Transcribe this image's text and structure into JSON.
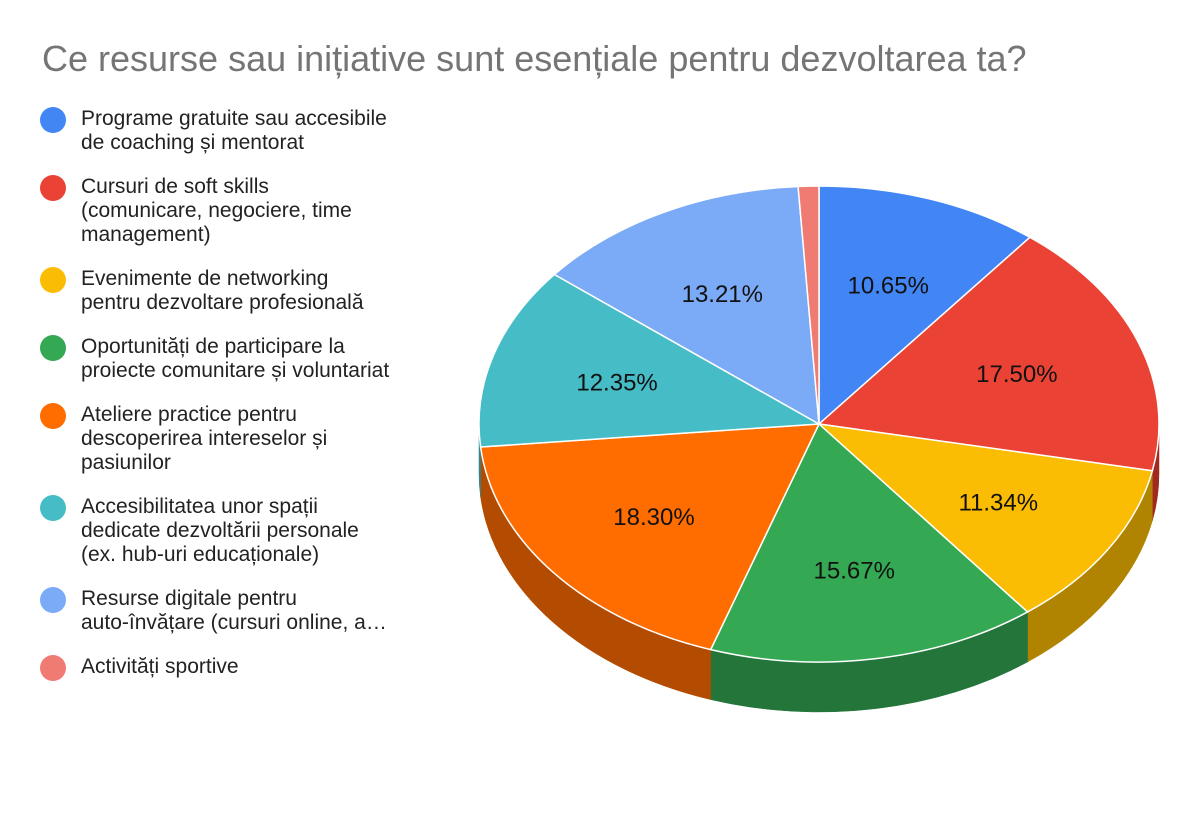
{
  "chart_data": {
    "type": "pie",
    "title": "Ce resurse sau inițiative sunt esențiale pentru dezvoltarea ta?",
    "legend_position": "left",
    "three_d": true,
    "slices": [
      {
        "name": "Programe gratuite sau accesibile\nde coaching și mentorat",
        "value": 10.65,
        "label": "10.65%",
        "color": "#4285f4",
        "side_color": "#2a56a8"
      },
      {
        "name": "Cursuri de soft skills\n(comunicare, negociere, time\nmanagement)",
        "value": 17.5,
        "label": "17.50%",
        "color": "#ea4335",
        "side_color": "#a12a20"
      },
      {
        "name": "Evenimente de networking\npentru dezvoltare profesională",
        "value": 11.34,
        "label": "11.34%",
        "color": "#fbbc04",
        "side_color": "#b08400"
      },
      {
        "name": "Oportunități de participare la\nproiecte comunitare și voluntariat",
        "value": 15.67,
        "label": "15.67%",
        "color": "#34a853",
        "side_color": "#23753a"
      },
      {
        "name": "Ateliere practice pentru\ndescoperirea intereselor și\npasiunilor",
        "value": 18.3,
        "label": "18.30%",
        "color": "#ff6d01",
        "side_color": "#b34c00"
      },
      {
        "name": "Accesibilitatea unor spații\ndedicate dezvoltării personale\n(ex. hub-uri educaționale)",
        "value": 12.35,
        "label": "12.35%",
        "color": "#46bdc6",
        "side_color": "#2e858b"
      },
      {
        "name": "Resurse digitale pentru\nauto-învățare (cursuri online, a…",
        "value": 13.21,
        "label": "13.21%",
        "color": "#7baaf7",
        "side_color": "#5477ad"
      },
      {
        "name": "Activități sportive",
        "value": 0.98,
        "label": "",
        "color": "#f07b72",
        "side_color": "#a8564f"
      }
    ]
  }
}
